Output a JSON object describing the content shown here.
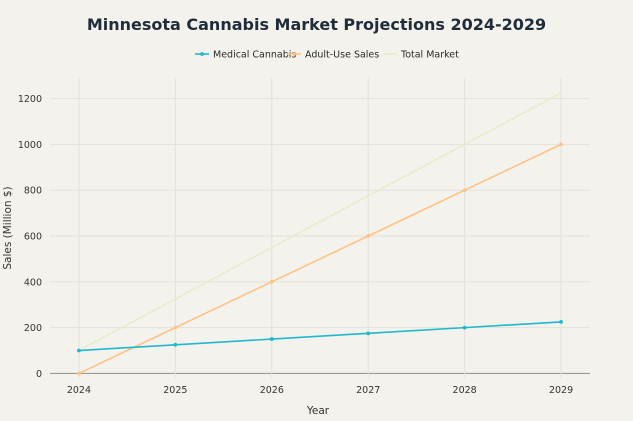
{
  "chart_data": {
    "type": "line",
    "title": "Minnesota Cannabis Market Projections 2024-2029",
    "xlabel": "Year",
    "ylabel": "Sales (Million $)",
    "x": [
      2024,
      2025,
      2026,
      2027,
      2028,
      2029
    ],
    "x_tick_labels": [
      "2024",
      "2025",
      "2026",
      "2027",
      "2028",
      "2029"
    ],
    "y_ticks": [
      0,
      200,
      400,
      600,
      800,
      1000,
      1200
    ],
    "y_tick_labels": [
      "0",
      "200",
      "400",
      "600",
      "800",
      "1000",
      "1200"
    ],
    "xlim": [
      2023.7,
      2029.3
    ],
    "ylim": [
      -20,
      1290
    ],
    "grid": true,
    "legend_position": "top-center",
    "series": [
      {
        "name": "Medical Cannabis",
        "color": "#1fb8cd",
        "markers": true,
        "values": [
          100,
          125,
          150,
          175,
          200,
          225
        ]
      },
      {
        "name": "Adult-Use Sales",
        "color": "#ffc185",
        "markers": true,
        "values": [
          0,
          200,
          400,
          600,
          800,
          1000
        ]
      },
      {
        "name": "Total Market",
        "color": "#ece9c8",
        "markers": false,
        "values": [
          100,
          325,
          550,
          775,
          1000,
          1225
        ]
      }
    ]
  }
}
